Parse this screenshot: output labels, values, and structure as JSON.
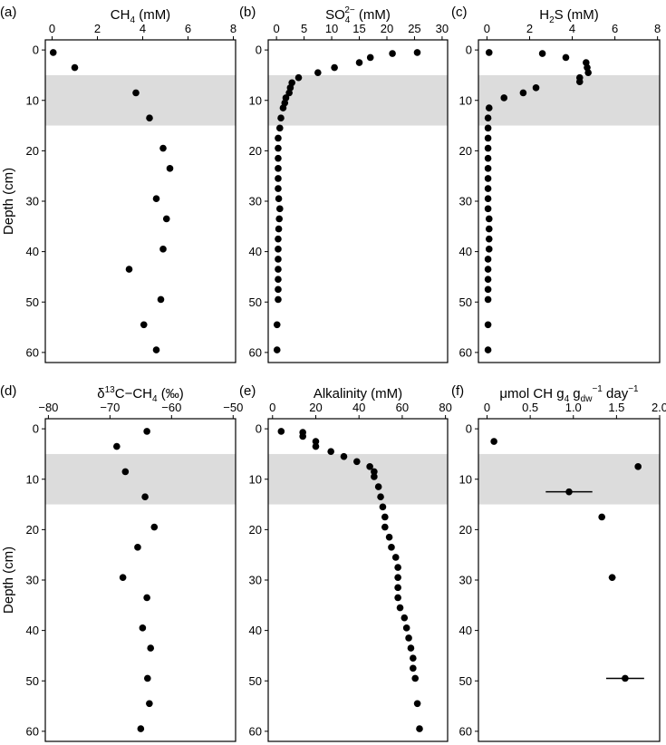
{
  "figure": {
    "y_axis_label": "Depth (cm)",
    "y_ticks": [
      0,
      10,
      20,
      30,
      40,
      50,
      60
    ],
    "y_range": [
      -2,
      62
    ],
    "shade_range": [
      5,
      15
    ],
    "colors": {
      "shade": "#dcdcdc",
      "ink": "#000000",
      "background": "#ffffff"
    }
  },
  "chart_data": [
    {
      "type": "scatter",
      "id": "a",
      "panel_label": "(a)",
      "title": {
        "pre": "CH",
        "sub": "4",
        "post": " (mM)"
      },
      "xlim": [
        -0.3,
        8.1
      ],
      "xticks": [
        0,
        2,
        4,
        6,
        8
      ],
      "points": [
        {
          "x": 0.05,
          "y": 0.5
        },
        {
          "x": 1.0,
          "y": 3.5
        },
        {
          "x": 3.7,
          "y": 8.5
        },
        {
          "x": 4.3,
          "y": 13.5
        },
        {
          "x": 4.9,
          "y": 19.5
        },
        {
          "x": 5.2,
          "y": 23.5
        },
        {
          "x": 4.6,
          "y": 29.5
        },
        {
          "x": 5.05,
          "y": 33.5
        },
        {
          "x": 4.9,
          "y": 39.5
        },
        {
          "x": 3.4,
          "y": 43.5
        },
        {
          "x": 4.8,
          "y": 49.5
        },
        {
          "x": 4.05,
          "y": 54.5
        },
        {
          "x": 4.6,
          "y": 59.5
        }
      ]
    },
    {
      "type": "scatter",
      "id": "b",
      "panel_label": "(b)",
      "title": {
        "pre": "SO",
        "sub": "4",
        "sup": "2−",
        "post": " (mM)"
      },
      "xlim": [
        -1.5,
        31
      ],
      "xticks": [
        0,
        5,
        10,
        15,
        20,
        25,
        30
      ],
      "points": [
        {
          "x": 25.5,
          "y": 0.5
        },
        {
          "x": 21.0,
          "y": 0.7
        },
        {
          "x": 17.0,
          "y": 1.5
        },
        {
          "x": 15.0,
          "y": 2.5
        },
        {
          "x": 10.5,
          "y": 3.5
        },
        {
          "x": 7.5,
          "y": 4.5
        },
        {
          "x": 4.0,
          "y": 5.5
        },
        {
          "x": 2.8,
          "y": 6.5
        },
        {
          "x": 2.5,
          "y": 7.5
        },
        {
          "x": 2.3,
          "y": 8.5
        },
        {
          "x": 1.7,
          "y": 9.5
        },
        {
          "x": 1.5,
          "y": 10.5
        },
        {
          "x": 1.2,
          "y": 11.5
        },
        {
          "x": 0.8,
          "y": 13.5
        },
        {
          "x": 0.6,
          "y": 15.5
        },
        {
          "x": 0.3,
          "y": 17.5
        },
        {
          "x": 0.3,
          "y": 19.5
        },
        {
          "x": 0.3,
          "y": 21.5
        },
        {
          "x": 0.3,
          "y": 23.5
        },
        {
          "x": 0.3,
          "y": 25.5
        },
        {
          "x": 0.3,
          "y": 27.5
        },
        {
          "x": 0.4,
          "y": 29.5
        },
        {
          "x": 0.6,
          "y": 31.5
        },
        {
          "x": 0.5,
          "y": 33.5
        },
        {
          "x": 0.4,
          "y": 35.5
        },
        {
          "x": 0.3,
          "y": 37.5
        },
        {
          "x": 0.3,
          "y": 39.5
        },
        {
          "x": 0.3,
          "y": 41.5
        },
        {
          "x": 0.3,
          "y": 43.5
        },
        {
          "x": 0.3,
          "y": 45.5
        },
        {
          "x": 0.3,
          "y": 47.5
        },
        {
          "x": 0.3,
          "y": 49.5
        },
        {
          "x": 0.1,
          "y": 54.5
        },
        {
          "x": 0.1,
          "y": 59.5
        }
      ]
    },
    {
      "type": "scatter",
      "id": "c",
      "panel_label": "(c)",
      "title": {
        "pre": "H",
        "sub": "2",
        "post": "S (mM)"
      },
      "xlim": [
        -0.4,
        8.1
      ],
      "xticks": [
        0,
        2,
        4,
        6,
        8
      ],
      "points": [
        {
          "x": 0.1,
          "y": 0.5
        },
        {
          "x": 2.6,
          "y": 0.7
        },
        {
          "x": 3.7,
          "y": 1.5
        },
        {
          "x": 4.65,
          "y": 2.5
        },
        {
          "x": 4.7,
          "y": 3.5
        },
        {
          "x": 4.75,
          "y": 4.5
        },
        {
          "x": 4.35,
          "y": 5.5
        },
        {
          "x": 4.35,
          "y": 6.3
        },
        {
          "x": 2.3,
          "y": 7.5
        },
        {
          "x": 1.7,
          "y": 8.5
        },
        {
          "x": 0.8,
          "y": 9.5
        },
        {
          "x": 0.1,
          "y": 11.5
        },
        {
          "x": 0.05,
          "y": 13.5
        },
        {
          "x": 0.05,
          "y": 15.5
        },
        {
          "x": 0.05,
          "y": 17.5
        },
        {
          "x": 0.05,
          "y": 19.5
        },
        {
          "x": 0.05,
          "y": 21.5
        },
        {
          "x": 0.05,
          "y": 23.5
        },
        {
          "x": 0.05,
          "y": 25.5
        },
        {
          "x": 0.05,
          "y": 27.5
        },
        {
          "x": 0.05,
          "y": 29.5
        },
        {
          "x": 0.05,
          "y": 31.5
        },
        {
          "x": 0.1,
          "y": 33.5
        },
        {
          "x": 0.1,
          "y": 35.5
        },
        {
          "x": 0.1,
          "y": 37.5
        },
        {
          "x": 0.1,
          "y": 39.5
        },
        {
          "x": 0.05,
          "y": 41.5
        },
        {
          "x": 0.05,
          "y": 43.5
        },
        {
          "x": 0.05,
          "y": 45.5
        },
        {
          "x": 0.05,
          "y": 47.5
        },
        {
          "x": 0.05,
          "y": 49.5
        },
        {
          "x": 0.05,
          "y": 54.5
        },
        {
          "x": 0.05,
          "y": 59.5
        }
      ]
    },
    {
      "type": "scatter",
      "id": "d",
      "panel_label": "(d)",
      "title": {
        "pre": "δ",
        "presup": "13",
        "mid": "C−CH",
        "sub": "4",
        "post": " (‰)"
      },
      "xlim": [
        -80.5,
        -49.6
      ],
      "xticks": [
        -80,
        -70,
        -60,
        -50
      ],
      "xticklabels": [
        "−80",
        "−70",
        "−60",
        "−50"
      ],
      "points": [
        {
          "x": -64.0,
          "y": 0.5
        },
        {
          "x": -68.9,
          "y": 3.5
        },
        {
          "x": -67.5,
          "y": 8.5
        },
        {
          "x": -64.3,
          "y": 13.5
        },
        {
          "x": -62.8,
          "y": 19.5
        },
        {
          "x": -65.5,
          "y": 23.5
        },
        {
          "x": -67.9,
          "y": 29.5
        },
        {
          "x": -64.0,
          "y": 33.5
        },
        {
          "x": -64.7,
          "y": 39.5
        },
        {
          "x": -63.4,
          "y": 43.5
        },
        {
          "x": -63.9,
          "y": 49.5
        },
        {
          "x": -63.6,
          "y": 54.5
        },
        {
          "x": -65.0,
          "y": 59.5
        }
      ]
    },
    {
      "type": "scatter",
      "id": "e",
      "panel_label": "(e)",
      "title": {
        "pre": "Alkalinity (mM)"
      },
      "xlim": [
        -2,
        81
      ],
      "xticks": [
        0,
        20,
        40,
        60,
        80
      ],
      "points": [
        {
          "x": 4,
          "y": 0.5
        },
        {
          "x": 14,
          "y": 0.7
        },
        {
          "x": 14,
          "y": 1.5
        },
        {
          "x": 20,
          "y": 2.5
        },
        {
          "x": 20,
          "y": 3.5
        },
        {
          "x": 27,
          "y": 4.5
        },
        {
          "x": 33,
          "y": 5.5
        },
        {
          "x": 39,
          "y": 6.5
        },
        {
          "x": 45,
          "y": 7.5
        },
        {
          "x": 47,
          "y": 8.5
        },
        {
          "x": 47,
          "y": 9.5
        },
        {
          "x": 49,
          "y": 11.5
        },
        {
          "x": 50,
          "y": 13.5
        },
        {
          "x": 51,
          "y": 15.5
        },
        {
          "x": 52,
          "y": 17.5
        },
        {
          "x": 52,
          "y": 19.5
        },
        {
          "x": 54,
          "y": 21.5
        },
        {
          "x": 55,
          "y": 23.5
        },
        {
          "x": 57,
          "y": 25.5
        },
        {
          "x": 58,
          "y": 27.5
        },
        {
          "x": 58,
          "y": 29.5
        },
        {
          "x": 58,
          "y": 31.5
        },
        {
          "x": 58,
          "y": 33.5
        },
        {
          "x": 59,
          "y": 35.5
        },
        {
          "x": 61,
          "y": 37.5
        },
        {
          "x": 62,
          "y": 39.5
        },
        {
          "x": 63,
          "y": 41.5
        },
        {
          "x": 64,
          "y": 43.5
        },
        {
          "x": 65,
          "y": 45.5
        },
        {
          "x": 65,
          "y": 47.5
        },
        {
          "x": 66,
          "y": 49.5
        },
        {
          "x": 67,
          "y": 54.5
        },
        {
          "x": 68,
          "y": 59.5
        }
      ]
    },
    {
      "type": "scatter",
      "id": "f",
      "panel_label": "(f)",
      "title": {
        "pre": "μmol CH",
        "sub": "4",
        "mid": " g",
        "sub2": "dw",
        "sup": "−1",
        "post": " day",
        "sup2": "−1"
      },
      "xlim": [
        -0.1,
        2.0
      ],
      "xticks": [
        0,
        0.5,
        1,
        1.5,
        2
      ],
      "xticklabels": [
        "0",
        "0.5",
        "1.0",
        "1.5",
        "2.0"
      ],
      "points": [
        {
          "x": 0.08,
          "y": 2.5
        },
        {
          "x": 1.75,
          "y": 7.5
        },
        {
          "x": 0.95,
          "y": 12.5,
          "err": 0.27
        },
        {
          "x": 1.33,
          "y": 17.5
        },
        {
          "x": 1.45,
          "y": 29.5,
          "err": 0.04
        },
        {
          "x": 1.6,
          "y": 49.5,
          "err": 0.22
        }
      ]
    }
  ]
}
